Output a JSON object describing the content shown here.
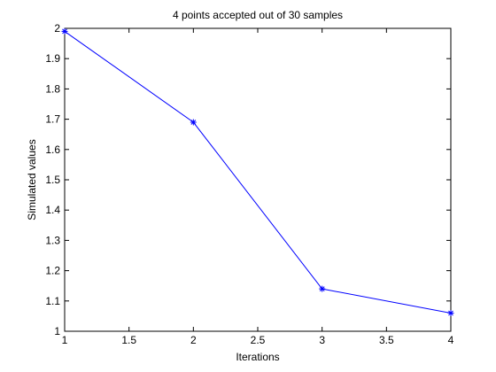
{
  "chart_data": {
    "type": "line",
    "title": "4 points accepted out of 30 samples",
    "xlabel": "Iterations",
    "ylabel": "Simulated values",
    "x": [
      1,
      2,
      3,
      4
    ],
    "series": [
      {
        "values": [
          1.99,
          1.69,
          1.14,
          1.06
        ]
      }
    ],
    "xlim": [
      1,
      4
    ],
    "ylim": [
      1,
      2
    ],
    "x_ticks": [
      1,
      1.5,
      2,
      2.5,
      3,
      3.5,
      4
    ],
    "x_tick_labels": [
      "1",
      "1.5",
      "2",
      "2.5",
      "3",
      "3.5",
      "4"
    ],
    "y_ticks": [
      1,
      1.1,
      1.2,
      1.3,
      1.4,
      1.5,
      1.6,
      1.7,
      1.8,
      1.9,
      2
    ],
    "y_tick_labels": [
      "1",
      "1.1",
      "1.2",
      "1.3",
      "1.4",
      "1.5",
      "1.6",
      "1.7",
      "1.8",
      "1.9",
      "2"
    ],
    "grid": false,
    "line_color": "#0000ff",
    "marker": "asterisk"
  }
}
